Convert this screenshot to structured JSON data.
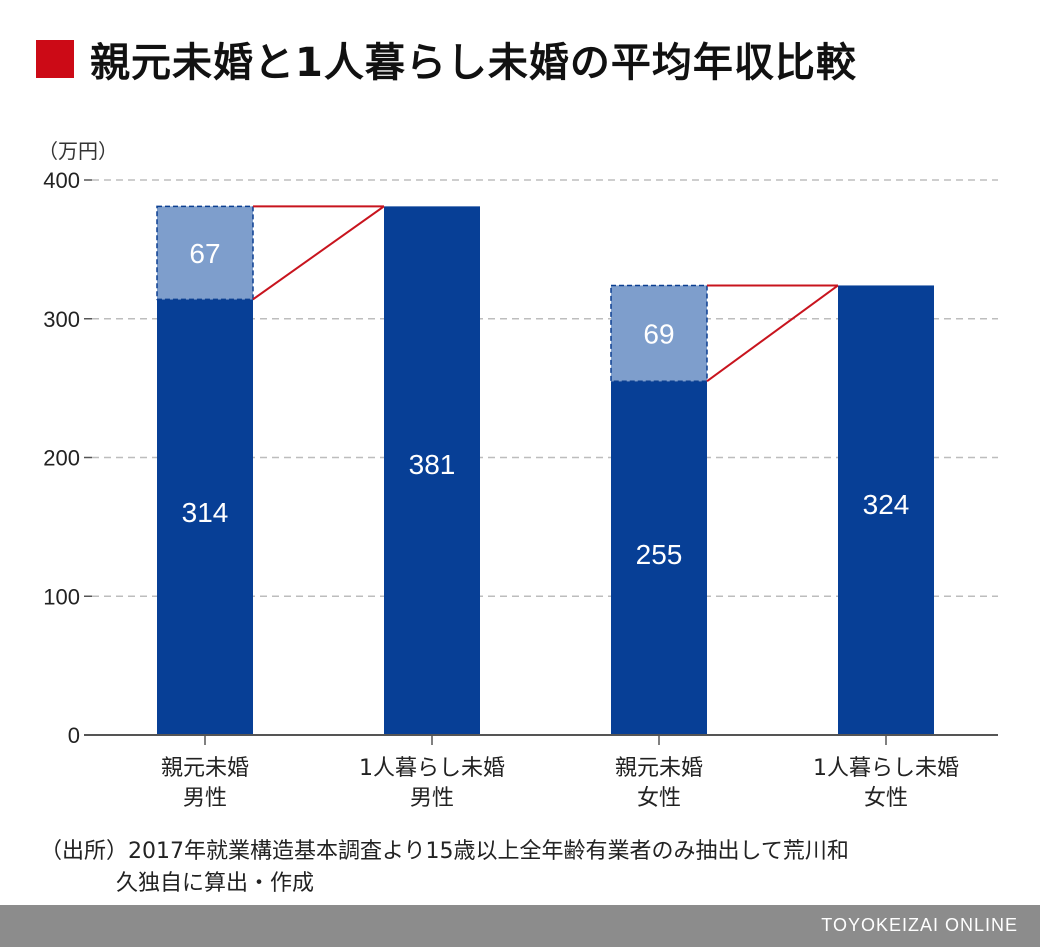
{
  "title": "親元未婚と1人暮らし未婚の平均年収比較",
  "chart_data": {
    "type": "bar",
    "unit_label": "（万円）",
    "ylim": [
      0,
      400
    ],
    "yticks": [
      "0",
      "100",
      "200",
      "300",
      "400"
    ],
    "grid": true,
    "categories": [
      {
        "line1": "親元未婚",
        "line2": "男性"
      },
      {
        "line1": "1人暮らし未婚",
        "line2": "男性"
      },
      {
        "line1": "親元未婚",
        "line2": "女性"
      },
      {
        "line1": "1人暮らし未婚",
        "line2": "女性"
      }
    ],
    "values": [
      314,
      381,
      255,
      324
    ],
    "value_labels": [
      "314",
      "381",
      "255",
      "324"
    ],
    "gaps": [
      {
        "category_index": 0,
        "value": 67,
        "label": "67"
      },
      {
        "category_index": 2,
        "value": 69,
        "label": "69"
      }
    ],
    "colors": {
      "bar": "#073f96",
      "gap": "#7e9ecc",
      "connector": "#c8141e",
      "grid": "#bdbdbd"
    }
  },
  "source": {
    "line1": "（出所）2017年就業構造基本調査より15歳以上全年齢有業者のみ抽出して荒川和",
    "line2": "久独自に算出・作成"
  },
  "footer": "TOYOKEIZAI ONLINE"
}
